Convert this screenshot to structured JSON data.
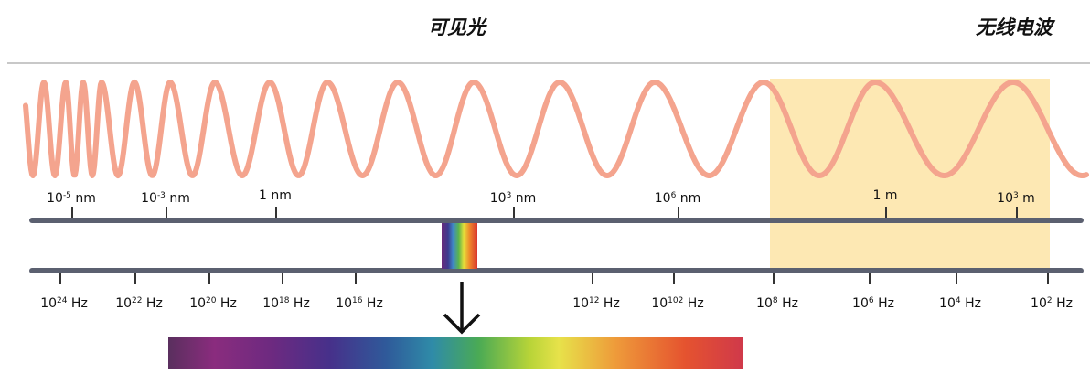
{
  "headings": {
    "visible_light": "可见光",
    "radio_waves": "无线电波"
  },
  "wavelength_scale": [
    {
      "base": "10",
      "exp": "-5",
      "unit": "nm"
    },
    {
      "base": "10",
      "exp": "-3",
      "unit": "nm"
    },
    {
      "base": "1",
      "exp": "",
      "unit": "nm"
    },
    {
      "base": "10",
      "exp": "3",
      "unit": "nm"
    },
    {
      "base": "10",
      "exp": "6",
      "unit": "nm"
    },
    {
      "base": "1",
      "exp": "",
      "unit": "m"
    },
    {
      "base": "10",
      "exp": "3",
      "unit": "m"
    }
  ],
  "frequency_scale": [
    {
      "base": "10",
      "exp": "24",
      "unit": "Hz"
    },
    {
      "base": "10",
      "exp": "22",
      "unit": "Hz"
    },
    {
      "base": "10",
      "exp": "20",
      "unit": "Hz"
    },
    {
      "base": "10",
      "exp": "18",
      "unit": "Hz"
    },
    {
      "base": "10",
      "exp": "16",
      "unit": "Hz"
    },
    {
      "base": "10",
      "exp": "12",
      "unit": "Hz"
    },
    {
      "base": "10",
      "exp": "102",
      "unit": "Hz"
    },
    {
      "base": "10",
      "exp": "8",
      "unit": "Hz"
    },
    {
      "base": "10",
      "exp": "6",
      "unit": "Hz"
    },
    {
      "base": "10",
      "exp": "4",
      "unit": "Hz"
    },
    {
      "base": "10",
      "exp": "2",
      "unit": "Hz"
    }
  ],
  "colors": {
    "wave": "#f4a48e",
    "radio_band": "#fde8b3",
    "axis": "#5b6070"
  }
}
